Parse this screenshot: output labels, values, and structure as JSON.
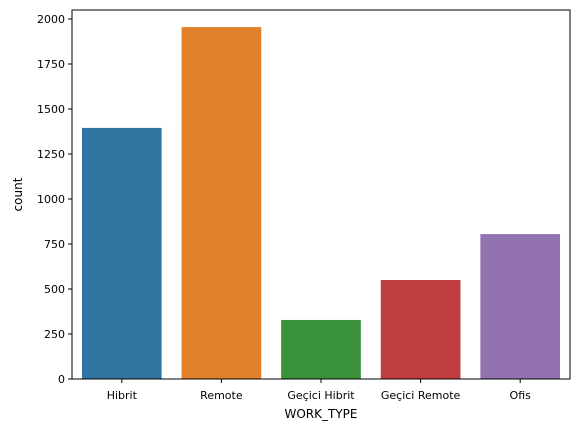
{
  "chart_data": {
    "type": "bar",
    "title": "",
    "xlabel": "WORK_TYPE",
    "ylabel": "count",
    "categories": [
      "Hibrit",
      "Remote",
      "Geçici Hibrit",
      "Geçici Remote",
      "Ofis"
    ],
    "values": [
      1395,
      1955,
      328,
      550,
      805
    ],
    "colors": [
      "#3274a1",
      "#e1812c",
      "#3a923a",
      "#c03d3e",
      "#9372b2"
    ],
    "ylim": [
      0,
      2050
    ],
    "yticks": [
      0,
      250,
      500,
      750,
      1000,
      1250,
      1500,
      1750,
      2000
    ],
    "grid": false,
    "legend": "none"
  }
}
